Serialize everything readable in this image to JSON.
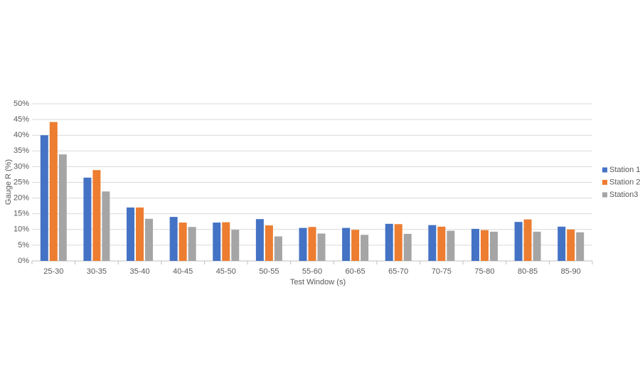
{
  "chart_data": {
    "type": "bar",
    "x_label": "Test Window (s)",
    "y_label": "Gauge R (%)",
    "categories": [
      "25-30",
      "30-35",
      "35-40",
      "40-45",
      "45-50",
      "50-55",
      "55-60",
      "60-65",
      "65-70",
      "70-75",
      "75-80",
      "80-85",
      "85-90"
    ],
    "series": [
      {
        "name": "Station 1",
        "color": "#4472c4",
        "values": [
          40,
          26.5,
          17,
          14,
          12.2,
          13.3,
          10.5,
          10.5,
          11.8,
          11.4,
          10.2,
          12.4,
          10.9
        ]
      },
      {
        "name": "Station 2",
        "color": "#ed7d31",
        "values": [
          44.2,
          28.9,
          17,
          12.2,
          12.3,
          11.3,
          10.8,
          9.9,
          11.7,
          10.9,
          9.8,
          13.2,
          10
        ]
      },
      {
        "name": "Station3",
        "color": "#a5a5a5",
        "values": [
          33.9,
          22.1,
          13.4,
          10.8,
          9.9,
          7.8,
          8.7,
          8.3,
          8.6,
          9.6,
          9.3,
          9.3,
          9.1
        ]
      }
    ],
    "ylim": [
      0,
      50
    ],
    "yticks": [
      {
        "value": 0,
        "label": "0%"
      },
      {
        "value": 5,
        "label": "5%"
      },
      {
        "value": 10,
        "label": "10%"
      },
      {
        "value": 15,
        "label": "15%"
      },
      {
        "value": 20,
        "label": "20%"
      },
      {
        "value": 25,
        "label": "25%"
      },
      {
        "value": 30,
        "label": "30%"
      },
      {
        "value": 35,
        "label": "35%"
      },
      {
        "value": 40,
        "label": "40%"
      },
      {
        "value": 45,
        "label": "45%"
      },
      {
        "value": 50,
        "label": "50%"
      }
    ],
    "grid": true,
    "legend": "right"
  }
}
